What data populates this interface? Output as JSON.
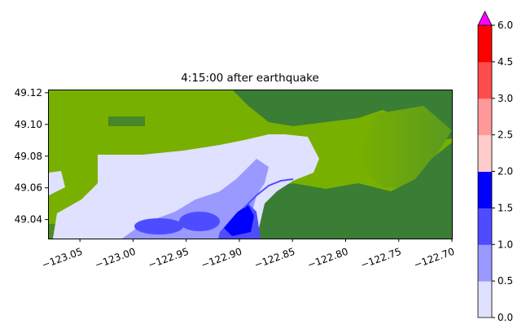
{
  "chart_data": {
    "type": "heatmap",
    "title": "4:15:00 after earthquake",
    "xlabel": "",
    "ylabel": "",
    "xlim": [
      -123.08,
      -122.7
    ],
    "ylim": [
      49.028,
      49.122
    ],
    "xticks": [
      -123.05,
      -123.0,
      -122.95,
      -122.9,
      -122.85,
      -122.8,
      -122.75,
      -122.7
    ],
    "xtick_labels": [
      "−123.05",
      "−123.00",
      "−122.95",
      "−122.90",
      "−122.85",
      "−122.80",
      "−122.75",
      "−122.70"
    ],
    "yticks": [
      49.04,
      49.06,
      49.08,
      49.1,
      49.12
    ],
    "ytick_labels": [
      "49.04",
      "49.06",
      "49.08",
      "49.10",
      "49.12"
    ],
    "colorbar": {
      "bounds": [
        0.0,
        0.5,
        1.0,
        1.5,
        2.0,
        2.5,
        3.0,
        4.5,
        6.0
      ],
      "tick_labels": [
        "0.0",
        "0.5",
        "1.0",
        "1.5",
        "2.0",
        "2.5",
        "3.0",
        "4.5",
        "6.0"
      ],
      "colors": [
        "#e0e0ff",
        "#9999ff",
        "#4d4dff",
        "#0000ff",
        "#ffcccc",
        "#ff9999",
        "#ff4d4d",
        "#ff0000"
      ],
      "extend_max_color": "#ff00ff"
    },
    "land_colors": {
      "low": "#78b000",
      "high": "#3a7d35"
    }
  }
}
